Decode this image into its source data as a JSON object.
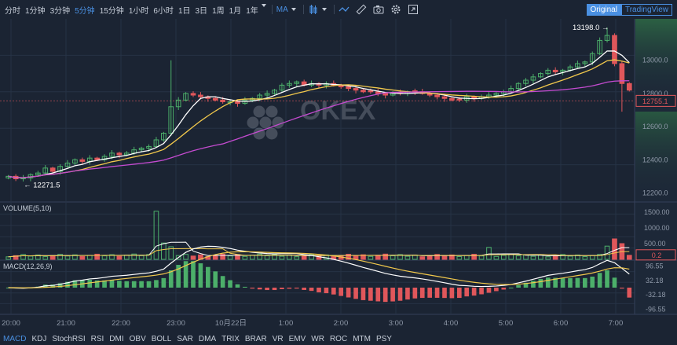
{
  "toolbar": {
    "timeframes": [
      "分时",
      "1分钟",
      "3分钟",
      "5分钟",
      "15分钟",
      "1小时",
      "6小时",
      "1日",
      "3日",
      "1周",
      "1月",
      "1年"
    ],
    "active_timeframe": "5分钟",
    "indicator_select": "MA",
    "icons": [
      "candle-style-icon",
      "line-tool-icon",
      "ruler-icon",
      "camera-icon",
      "settings-icon",
      "fullscreen-icon"
    ]
  },
  "view": {
    "original": "Original",
    "tradingview": "TradingView",
    "active": "Original"
  },
  "watermark": "OKEX",
  "colors": {
    "up": "#4caf6a",
    "down": "#e0575b",
    "ma5": "#ffffff",
    "ma10": "#f2c94c",
    "ma30": "#c44bd0",
    "accent": "#4a90e2",
    "bg": "#1b2433",
    "grid": "#263245"
  },
  "chart_data": [
    {
      "type": "candlestick",
      "panel": "price",
      "x_labels": [
        "20:00",
        "21:00",
        "22:00",
        "23:00",
        "10月22日",
        "1:00",
        "2:00",
        "3:00",
        "4:00",
        "5:00",
        "6:00",
        "7:00"
      ],
      "y_ticks": [
        "13000.0",
        "12800.0",
        "12600.0",
        "12400.0",
        "12200.0"
      ],
      "ylim": [
        12150,
        13250
      ],
      "annotations": {
        "high": "13198.0",
        "low": "12271.5"
      },
      "current_price": "12755.1",
      "closes": [
        12300,
        12285,
        12290,
        12310,
        12320,
        12350,
        12330,
        12360,
        12380,
        12400,
        12390,
        12410,
        12400,
        12420,
        12440,
        12430,
        12440,
        12460,
        12470,
        12480,
        12520,
        12560,
        12720,
        12760,
        12800,
        12790,
        12780,
        12770,
        12760,
        12750,
        12750,
        12740,
        12760,
        12770,
        12790,
        12800,
        12820,
        12850,
        12860,
        12870,
        12850,
        12860,
        12850,
        12860,
        12850,
        12840,
        12830,
        12820,
        12810,
        12810,
        12800,
        12790,
        12800,
        12800,
        12810,
        12810,
        12800,
        12790,
        12780,
        12770,
        12760,
        12760,
        12780,
        12770,
        12780,
        12790,
        12800,
        12810,
        12830,
        12860,
        12880,
        12900,
        12920,
        12940,
        12930,
        12940,
        12960,
        12980,
        12990,
        13040,
        13120,
        13150,
        12980,
        12860,
        12820
      ]
    },
    {
      "type": "bar",
      "panel": "volume",
      "title": "VOLUME(5,10)",
      "y_ticks": [
        "1500.00",
        "1000.00",
        "500.00"
      ],
      "ylim": [
        0,
        1700
      ],
      "current_value": "0.2",
      "spikes": {
        "22:20": 1530,
        "7:00": 650,
        "3:50": 380,
        "6:55": 420
      }
    },
    {
      "type": "bar",
      "panel": "macd",
      "title": "MACD(12,26,9)",
      "y_ticks": [
        "96.55",
        "32.18",
        "-32.18",
        "-96.55"
      ],
      "ylim": [
        -120,
        120
      ]
    }
  ],
  "bottom_tabs": [
    "MACD",
    "KDJ",
    "StochRSI",
    "RSI",
    "DMI",
    "OBV",
    "BOLL",
    "SAR",
    "DMA",
    "TRIX",
    "BRAR",
    "VR",
    "EMV",
    "WR",
    "ROC",
    "MTM",
    "PSY"
  ],
  "active_tab": "MACD"
}
